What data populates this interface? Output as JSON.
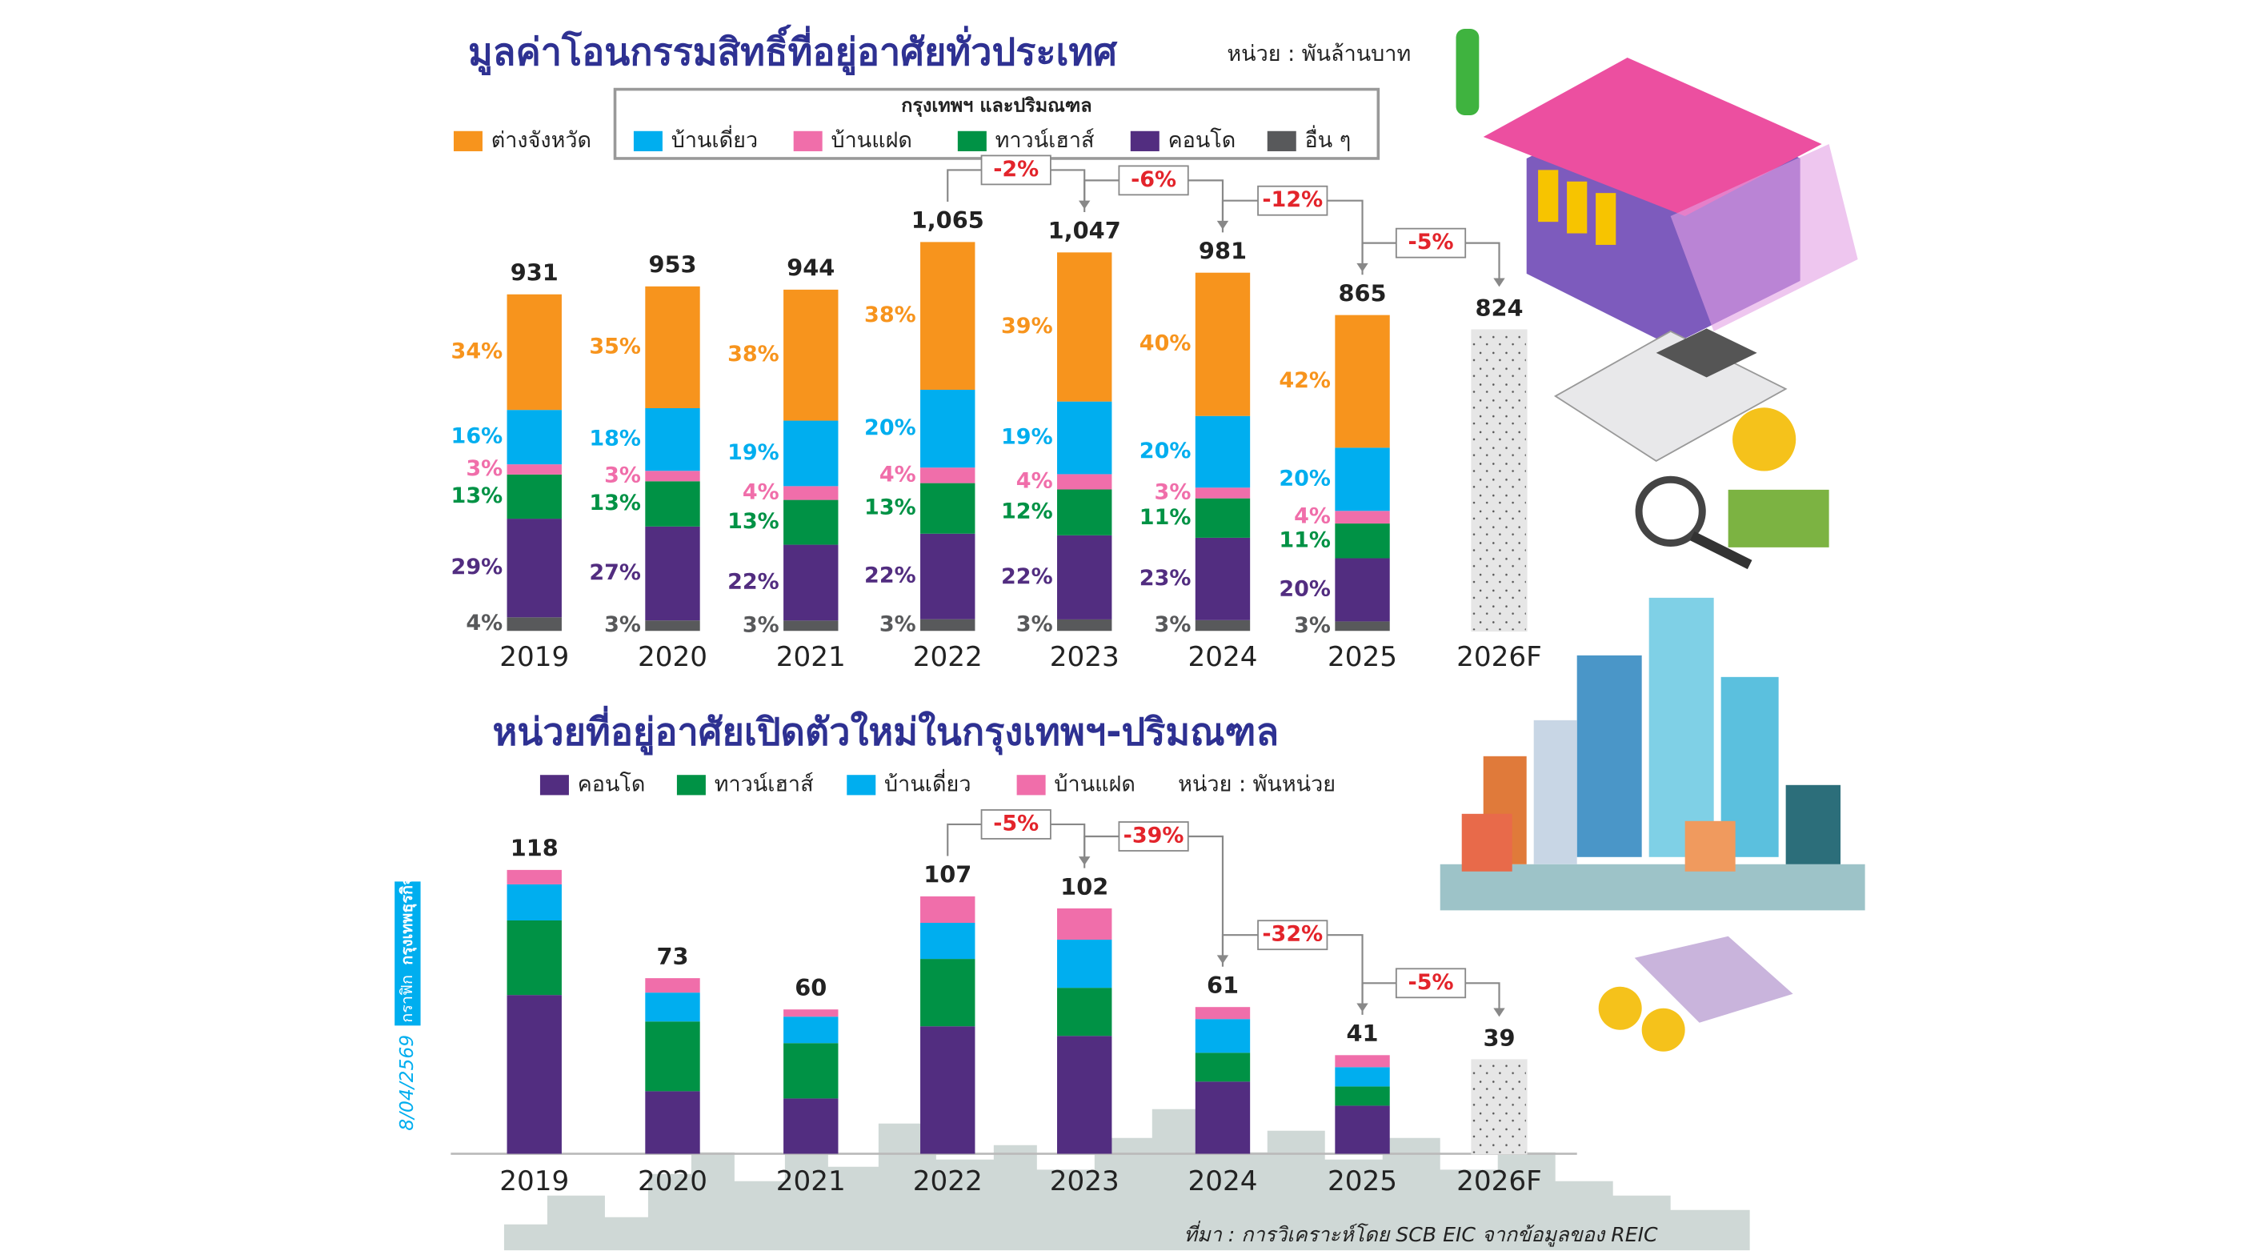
{
  "chart_data": [
    {
      "type": "bar",
      "stack_mode": "percent_of_total",
      "title": "มูลค่าโอนกรรมสิทธิ์ที่อยู่อาศัยทั่วประเทศ",
      "unit": "หน่วย : พันล้านบาท",
      "legend_group": "กรุงเทพฯ และปริมณฑล",
      "categories": [
        "2019",
        "2020",
        "2021",
        "2022",
        "2023",
        "2024",
        "2025",
        "2026F"
      ],
      "totals": {
        "values": [
          931,
          953,
          944,
          1065,
          1047,
          981,
          865,
          824
        ],
        "value_labels": [
          "931",
          "953",
          "944",
          "1,065",
          "1,047",
          "981",
          "865",
          "824"
        ]
      },
      "forecast_color": "#e6e6e6",
      "series": [
        {
          "name": "ต่างจังหวัด",
          "color": "#f7941d",
          "values": [
            34,
            35,
            38,
            38,
            39,
            40,
            42,
            null
          ],
          "value_labels": [
            "34%",
            "35%",
            "38%",
            "38%",
            "39%",
            "40%",
            "42%",
            null
          ]
        },
        {
          "name": "บ้านเดี่ยว",
          "color": "#00aeef",
          "values": [
            16,
            18,
            19,
            20,
            19,
            20,
            20,
            null
          ],
          "value_labels": [
            "16%",
            "18%",
            "19%",
            "20%",
            "19%",
            "20%",
            "20%",
            null
          ]
        },
        {
          "name": "บ้านแฝด",
          "color": "#f06eaa",
          "values": [
            3,
            3,
            4,
            4,
            4,
            3,
            4,
            null
          ],
          "value_labels": [
            "3%",
            "3%",
            "4%",
            "4%",
            "4%",
            "3%",
            "4%",
            null
          ]
        },
        {
          "name": "ทาวน์เฮาส์",
          "color": "#009245",
          "values": [
            13,
            13,
            13,
            13,
            12,
            11,
            11,
            null
          ],
          "value_labels": [
            "13%",
            "13%",
            "13%",
            "13%",
            "12%",
            "11%",
            "11%",
            null
          ]
        },
        {
          "name": "คอนโด",
          "color": "#522d80",
          "values": [
            29,
            27,
            22,
            22,
            22,
            23,
            20,
            null
          ],
          "value_labels": [
            "29%",
            "27%",
            "22%",
            "22%",
            "22%",
            "23%",
            "20%",
            null
          ]
        },
        {
          "name": "อื่น ๆ",
          "color": "#58595b",
          "values": [
            4,
            3,
            3,
            3,
            3,
            3,
            3,
            null
          ],
          "value_labels": [
            "4%",
            "3%",
            "3%",
            "3%",
            "3%",
            "3%",
            "3%",
            null
          ]
        }
      ],
      "annotations": [
        "-2%",
        "-6%",
        "-12%",
        "-5%"
      ]
    },
    {
      "type": "bar",
      "stack_mode": "absolute",
      "title": "หน่วยที่อยู่อาศัยเปิดตัวใหม่ในกรุงเทพฯ-ปริมณฑล",
      "unit": "หน่วย : พันหน่วย",
      "categories": [
        "2019",
        "2020",
        "2021",
        "2022",
        "2023",
        "2024",
        "2025",
        "2026F"
      ],
      "totals": {
        "values": [
          118,
          73,
          60,
          107,
          102,
          61,
          41,
          39
        ]
      },
      "forecast_color": "#e6e6e6",
      "series": [
        {
          "name": "คอนโด",
          "color": "#522d80",
          "values": [
            66,
            26,
            23,
            53,
            49,
            30,
            20,
            null
          ]
        },
        {
          "name": "ทาวน์เฮาส์",
          "color": "#009245",
          "values": [
            31,
            29,
            23,
            28,
            20,
            12,
            8,
            null
          ]
        },
        {
          "name": "บ้านเดี่ยว",
          "color": "#00aeef",
          "values": [
            15,
            12,
            11,
            15,
            20,
            14,
            8,
            null
          ]
        },
        {
          "name": "บ้านแฝด",
          "color": "#f06eaa",
          "values": [
            6,
            6,
            3,
            11,
            13,
            5,
            5,
            null
          ]
        }
      ],
      "annotations": [
        "-5%",
        "-39%",
        "-32%",
        "-5%"
      ]
    }
  ],
  "page": {
    "source": "ที่มา : การวิเคราะห์โดย SCB EIC จากข้อมูลของ REIC",
    "date": "8/04/2569",
    "credit_label": "กราฟิก",
    "publisher": "กรุงเทพธุรกิจ"
  }
}
